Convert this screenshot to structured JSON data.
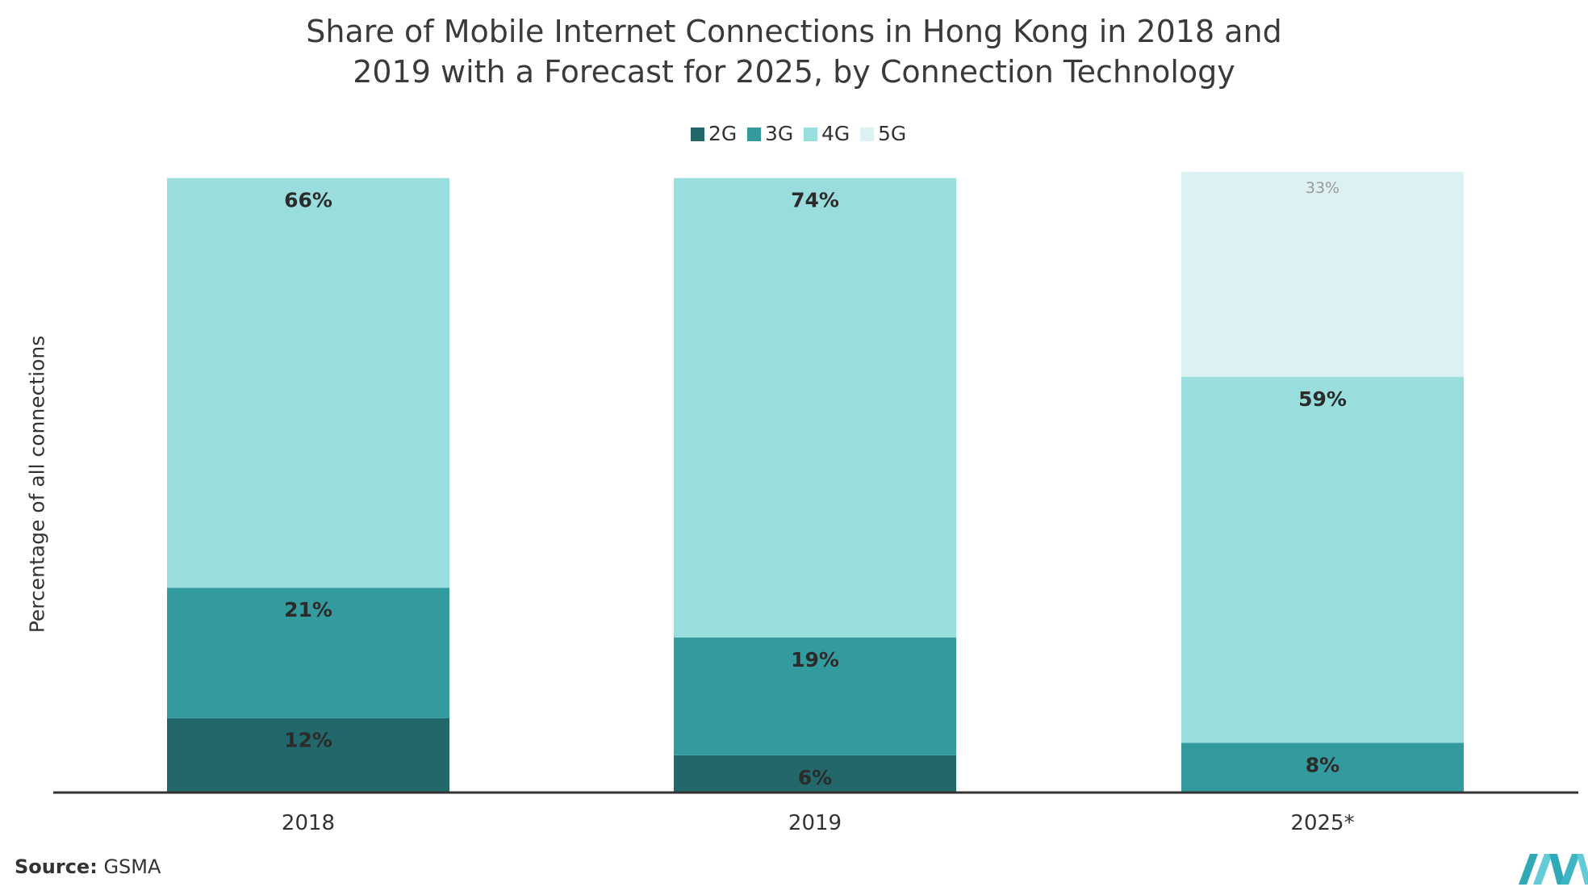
{
  "chart_data": {
    "type": "bar",
    "stacked": true,
    "title": "Share of Mobile Internet Connections in Hong Kong in 2018 and 2019 with a Forecast for 2025, by Connection Technology",
    "title_lines": [
      "Share of Mobile Internet Connections in Hong Kong in 2018 and",
      "2019 with a Forecast for 2025, by Connection Technology"
    ],
    "xlabel": "",
    "ylabel": "Percentage of all connections",
    "categories": [
      "2018",
      "2019",
      "2025*"
    ],
    "ylim": [
      0,
      100
    ],
    "grid": false,
    "legend_position": "top-center",
    "series": [
      {
        "name": "2G",
        "color": "#22686a",
        "values": [
          12,
          6,
          0
        ],
        "labels": [
          "12%",
          "6%",
          ""
        ]
      },
      {
        "name": "3G",
        "color": "#339b9e",
        "values": [
          21,
          19,
          8
        ],
        "labels": [
          "21%",
          "19%",
          "8%"
        ]
      },
      {
        "name": "4G",
        "color": "#9adddd",
        "values": [
          66,
          74,
          59
        ],
        "labels": [
          "66%",
          "74%",
          "59%"
        ]
      },
      {
        "name": "5G",
        "color": "#dcf2f2",
        "values": [
          0,
          0,
          33
        ],
        "labels": [
          "",
          "",
          "33%"
        ]
      }
    ]
  },
  "source": {
    "label": "Source:",
    "text": "GSMA"
  },
  "logo": {
    "icon": "mordor-intelligence-logo-icon"
  }
}
